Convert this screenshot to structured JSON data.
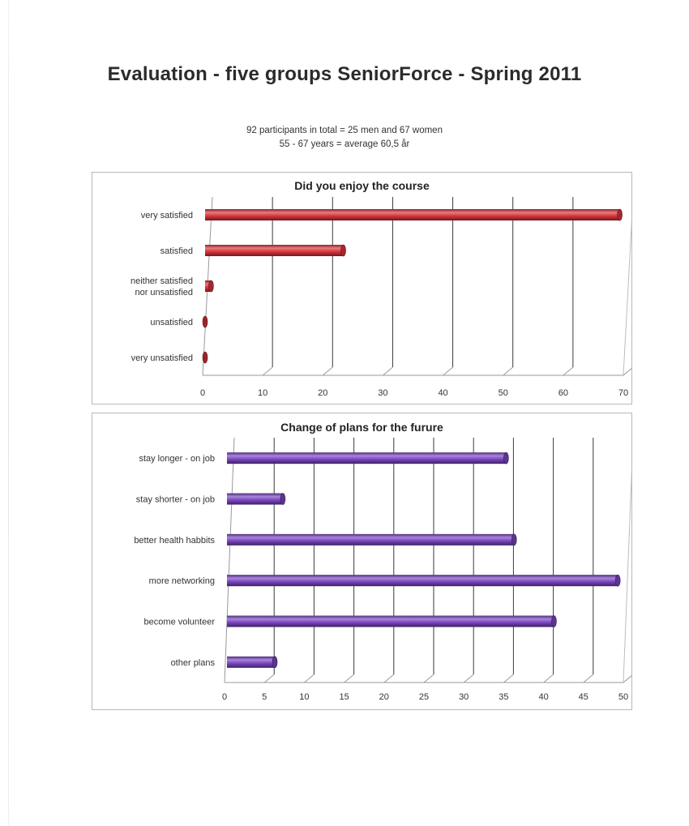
{
  "page": {
    "title": "Evaluation - five groups SeniorForce - Spring 2011",
    "subtitle_line1": "92 participants in total = 25 men and 67 women",
    "subtitle_line2": "55 - 67 years = average 60,5 år"
  },
  "chart_data": [
    {
      "type": "bar",
      "orientation": "horizontal",
      "title": "Did you enjoy the course",
      "categories": [
        "very satisfied",
        "satisfied",
        "neither satisfied nor unsatisfied",
        "unsatisfied",
        "very unsatisfied"
      ],
      "category_lines": [
        [
          "very satisfied"
        ],
        [
          "satisfied"
        ],
        [
          "neither satisfied",
          "nor unsatisfied"
        ],
        [
          "unsatisfied"
        ],
        [
          "very unsatisfied"
        ]
      ],
      "values": [
        69,
        23,
        1,
        0,
        0
      ],
      "xlim": [
        0,
        70
      ],
      "xticks": [
        0,
        10,
        20,
        30,
        40,
        50,
        60,
        70
      ],
      "grid": true,
      "color": "#d9353b"
    },
    {
      "type": "bar",
      "orientation": "horizontal",
      "title": "Change of plans for the furure",
      "categories": [
        "stay longer - on  job",
        "stay shorter - on job",
        "better health habbits",
        "more networking",
        "become volunteer",
        "other plans"
      ],
      "category_lines": [
        [
          "stay longer - on  job"
        ],
        [
          "stay shorter - on job"
        ],
        [
          "better health habbits"
        ],
        [
          "more networking"
        ],
        [
          "become volunteer"
        ],
        [
          "other plans"
        ]
      ],
      "values": [
        35,
        7,
        36,
        49,
        41,
        6
      ],
      "xlim": [
        0,
        50
      ],
      "xticks": [
        0,
        5,
        10,
        15,
        20,
        25,
        30,
        35,
        40,
        45,
        50
      ],
      "grid": true,
      "color": "#7a45c2"
    }
  ]
}
